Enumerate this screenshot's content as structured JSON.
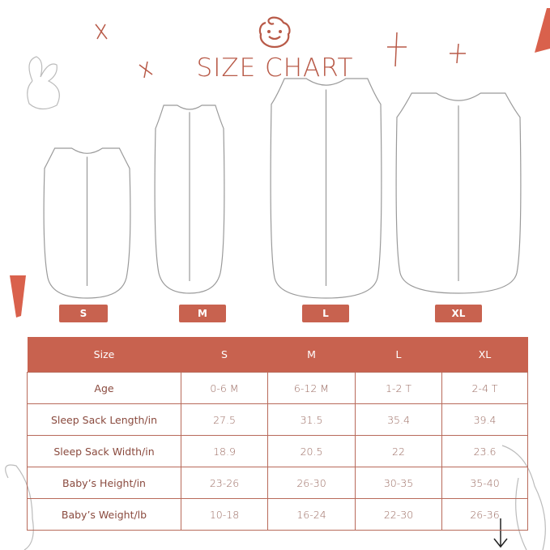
{
  "title": "SIZE CHART",
  "size_badges": [
    "S",
    "M",
    "L",
    "XL"
  ],
  "table": {
    "headers": [
      "Size",
      "S",
      "M",
      "L",
      "XL"
    ],
    "rows": [
      {
        "label": "Age",
        "values": [
          "0-6 M",
          "6-12 M",
          "1-2 T",
          "2-4 T"
        ]
      },
      {
        "label": "Sleep Sack Length/in",
        "values": [
          "27.5",
          "31.5",
          "35.4",
          "39.4"
        ]
      },
      {
        "label": "Sleep Sack Width/in",
        "values": [
          "18.9",
          "20.5",
          "22",
          "23.6"
        ]
      },
      {
        "label": "Baby’s Height/in",
        "values": [
          "23-26",
          "26-30",
          "30-35",
          "35-40"
        ]
      },
      {
        "label": "Baby’s Weight/lb",
        "values": [
          "10-18",
          "16-24",
          "22-30",
          "26-36"
        ]
      }
    ]
  },
  "colors": {
    "accent": "#c8624f",
    "title": "#b85a48",
    "text": "#8a4a3e"
  },
  "icons": [
    "baby-face-icon",
    "bunny-illustration",
    "carrot-illustration",
    "sparkle-cross"
  ]
}
